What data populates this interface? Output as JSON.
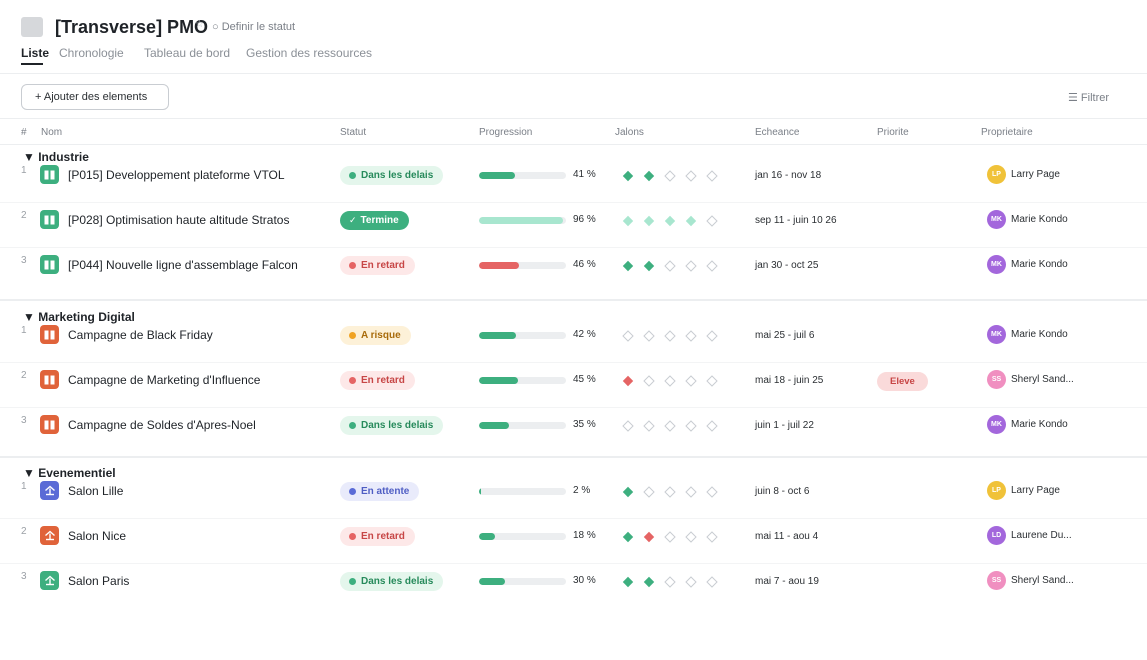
{
  "header": {
    "title": "[Transverse] PMO",
    "status_link": "○ Definir le statut",
    "tabs": [
      {
        "label": "Liste",
        "active": true
      },
      {
        "label": "Chronologie",
        "active": false
      },
      {
        "label": "Tableau de bord",
        "active": false
      },
      {
        "label": "Gestion des ressources",
        "active": false
      }
    ]
  },
  "toolbar": {
    "add_label": "+ Ajouter des elements",
    "filter_label": "☰ Filtrer"
  },
  "columns": {
    "num": "#",
    "name": "Nom",
    "status": "Statut",
    "progress": "Progression",
    "milestones": "Jalons",
    "deadline": "Echeance",
    "priority": "Priorite",
    "owner": "Proprietaire"
  },
  "colors": {
    "green": "#3daf7f",
    "green_light": "#a8e6cf",
    "red": "#e56464",
    "orange": "#e0633a",
    "amber": "#f0a323",
    "indigo": "#5a6bd6",
    "empty_diamond": "#c9cdd2"
  },
  "statuses": {
    "on_time": {
      "label": "Dans les delais",
      "bg": "#e4f6ec",
      "fg": "#268a5b",
      "dot": "#3daf7f"
    },
    "done": {
      "label": "Termine",
      "bg": "#3daf7f",
      "fg": "#ffffff",
      "icon": "check-icon"
    },
    "late": {
      "label": "En retard",
      "bg": "#fde8e8",
      "fg": "#c74646",
      "dot": "#e56464"
    },
    "risk": {
      "label": "A risque",
      "bg": "#fdf1d8",
      "fg": "#a86b0b",
      "dot": "#f0a323"
    },
    "waiting": {
      "label": "En attente",
      "bg": "#e9ebfb",
      "fg": "#4f5ec4",
      "dot": "#5a6bd6"
    }
  },
  "people": {
    "LP": {
      "initials": "LP",
      "name": "Larry Page",
      "color": "#f0c239"
    },
    "MK": {
      "initials": "MK",
      "name": "Marie Kondo",
      "color": "#a367dc"
    },
    "SS": {
      "initials": "SS",
      "name": "Sheryl Sand...",
      "color": "#f08fc0"
    },
    "LD": {
      "initials": "LD",
      "name": "Laurene Du...",
      "color": "#a367dc"
    }
  },
  "groups": [
    {
      "title": "▼ Industrie",
      "rows": [
        {
          "num": "1",
          "icon": "project-board-icon",
          "icon_color": "#3daf7f",
          "name": "[P015] Developpement plateforme VTOL",
          "status": "on_time",
          "progress": 41,
          "progress_color": "#3daf7f",
          "progress_label": "41 %",
          "milestones": [
            "g",
            "g",
            "e",
            "e",
            "e"
          ],
          "deadline": "jan 16 - nov 18",
          "priority": "",
          "owner": "LP"
        },
        {
          "num": "2",
          "icon": "project-board-icon",
          "icon_color": "#3daf7f",
          "name": "[P028] Optimisation haute altitude Stratos",
          "status": "done",
          "progress": 96,
          "progress_color": "#a8e6cf",
          "progress_label": "96 %",
          "milestones": [
            "l",
            "l",
            "l",
            "l",
            "e"
          ],
          "deadline": "sep 11 - juin 10 26",
          "priority": "",
          "owner": "MK"
        },
        {
          "num": "3",
          "icon": "project-board-icon",
          "icon_color": "#3daf7f",
          "name": "[P044] Nouvelle ligne d'assemblage Falcon",
          "status": "late",
          "progress": 46,
          "progress_color": "#e56464",
          "progress_label": "46 %",
          "milestones": [
            "g",
            "g",
            "e",
            "e",
            "e"
          ],
          "deadline": "jan 30 - oct 25",
          "priority": "",
          "owner": "MK"
        }
      ]
    },
    {
      "title": "▼ Marketing Digital",
      "rows": [
        {
          "num": "1",
          "icon": "project-board-icon",
          "icon_color": "#e0633a",
          "name": "Campagne de Black Friday",
          "status": "risk",
          "progress": 42,
          "progress_color": "#3daf7f",
          "progress_label": "42 %",
          "milestones": [
            "e",
            "e",
            "e",
            "e",
            "e"
          ],
          "deadline": "mai 25 - juil 6",
          "priority": "",
          "owner": "MK"
        },
        {
          "num": "2",
          "icon": "project-board-icon",
          "icon_color": "#e0633a",
          "name": "Campagne de Marketing d'Influence",
          "status": "late",
          "progress": 45,
          "progress_color": "#3daf7f",
          "progress_label": "45 %",
          "milestones": [
            "r",
            "e",
            "e",
            "e",
            "e"
          ],
          "deadline": "mai 18 - juin 25",
          "priority": "Eleve",
          "owner": "SS"
        },
        {
          "num": "3",
          "icon": "project-board-icon",
          "icon_color": "#e0633a",
          "name": "Campagne de Soldes d'Apres-Noel",
          "status": "on_time",
          "progress": 35,
          "progress_color": "#3daf7f",
          "progress_label": "35 %",
          "milestones": [
            "e",
            "e",
            "e",
            "e",
            "e"
          ],
          "deadline": "juin 1 - juil 22",
          "priority": "",
          "owner": "MK"
        }
      ]
    },
    {
      "title": "▼ Evenementiel",
      "rows": [
        {
          "num": "1",
          "icon": "event-upload-icon",
          "icon_color": "#5a6bd6",
          "name": "Salon Lille",
          "status": "waiting",
          "progress": 2,
          "progress_color": "#3daf7f",
          "progress_label": "2 %",
          "milestones": [
            "g",
            "e",
            "e",
            "e",
            "e"
          ],
          "deadline": "juin 8 - oct 6",
          "priority": "",
          "owner": "LP"
        },
        {
          "num": "2",
          "icon": "event-upload-icon",
          "icon_color": "#e0633a",
          "name": "Salon Nice",
          "status": "late",
          "progress": 18,
          "progress_color": "#3daf7f",
          "progress_label": "18 %",
          "milestones": [
            "g",
            "r",
            "e",
            "e",
            "e"
          ],
          "deadline": "mai 11 - aou 4",
          "priority": "",
          "owner": "LD"
        },
        {
          "num": "3",
          "icon": "event-upload-icon",
          "icon_color": "#3daf7f",
          "name": "Salon Paris",
          "status": "on_time",
          "progress": 30,
          "progress_color": "#3daf7f",
          "progress_label": "30 %",
          "milestones": [
            "g",
            "g",
            "e",
            "e",
            "e"
          ],
          "deadline": "mai 7 - aou 19",
          "priority": "",
          "owner": "SS"
        }
      ]
    }
  ]
}
